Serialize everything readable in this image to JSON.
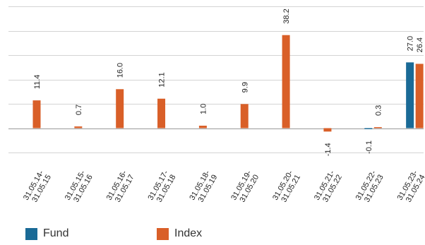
{
  "chart_data": {
    "type": "bar",
    "categories": [
      "31.05.14-31.05.15",
      "31.05.15-31.05.16",
      "31.05.16-31.05.17",
      "31.05.17-31.05.18",
      "31.05.18-31.05.19",
      "31.05.19-31.05.20",
      "31.05.20-31.05.21",
      "31.05.21-31.05.22",
      "31.05.22-31.05.23",
      "31.05.23-31.05.24"
    ],
    "series": [
      {
        "name": "Fund",
        "color": "#1a6a96",
        "values": [
          null,
          null,
          null,
          null,
          null,
          null,
          null,
          null,
          -0.1,
          27.0
        ],
        "labels": [
          "",
          "",
          "",
          "",
          "",
          "",
          "",
          "",
          "-0.1",
          "27.0"
        ]
      },
      {
        "name": "Index",
        "color": "#d95f28",
        "values": [
          11.4,
          0.7,
          16.0,
          12.1,
          1.0,
          9.9,
          38.2,
          -1.4,
          0.3,
          26.4
        ],
        "labels": [
          "11.4",
          "0.7",
          "16.0",
          "12.1",
          "1.0",
          "9.9",
          "38.2",
          "-1.4",
          "0.3",
          "26.4"
        ]
      }
    ],
    "ylim": [
      -10,
      50
    ],
    "grid": true,
    "legend": "bottom-left"
  }
}
